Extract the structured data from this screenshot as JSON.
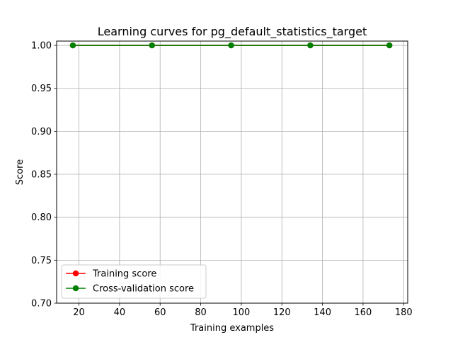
{
  "chart_data": {
    "type": "line",
    "title": "Learning curves for pg_default_statistics_target",
    "xlabel": "Training examples",
    "ylabel": "Score",
    "xlim": [
      9,
      182
    ],
    "ylim": [
      0.7,
      1.005
    ],
    "xticks": [
      20,
      40,
      60,
      80,
      100,
      120,
      140,
      160,
      180
    ],
    "xtick_labels": [
      "20",
      "40",
      "60",
      "80",
      "100",
      "120",
      "140",
      "160",
      "180"
    ],
    "yticks": [
      0.7,
      0.75,
      0.8,
      0.85,
      0.9,
      0.95,
      1.0
    ],
    "ytick_labels": [
      "0.70",
      "0.75",
      "0.80",
      "0.85",
      "0.90",
      "0.95",
      "1.00"
    ],
    "grid": true,
    "legend_position": "lower-left",
    "x": [
      17,
      56,
      95,
      134,
      173
    ],
    "series": [
      {
        "name": "Training score",
        "color": "#ff0000",
        "values": [
          1.0,
          1.0,
          1.0,
          1.0,
          1.0
        ]
      },
      {
        "name": "Cross-validation score",
        "color": "#008000",
        "values": [
          1.0,
          1.0,
          1.0,
          1.0,
          1.0
        ]
      }
    ]
  }
}
